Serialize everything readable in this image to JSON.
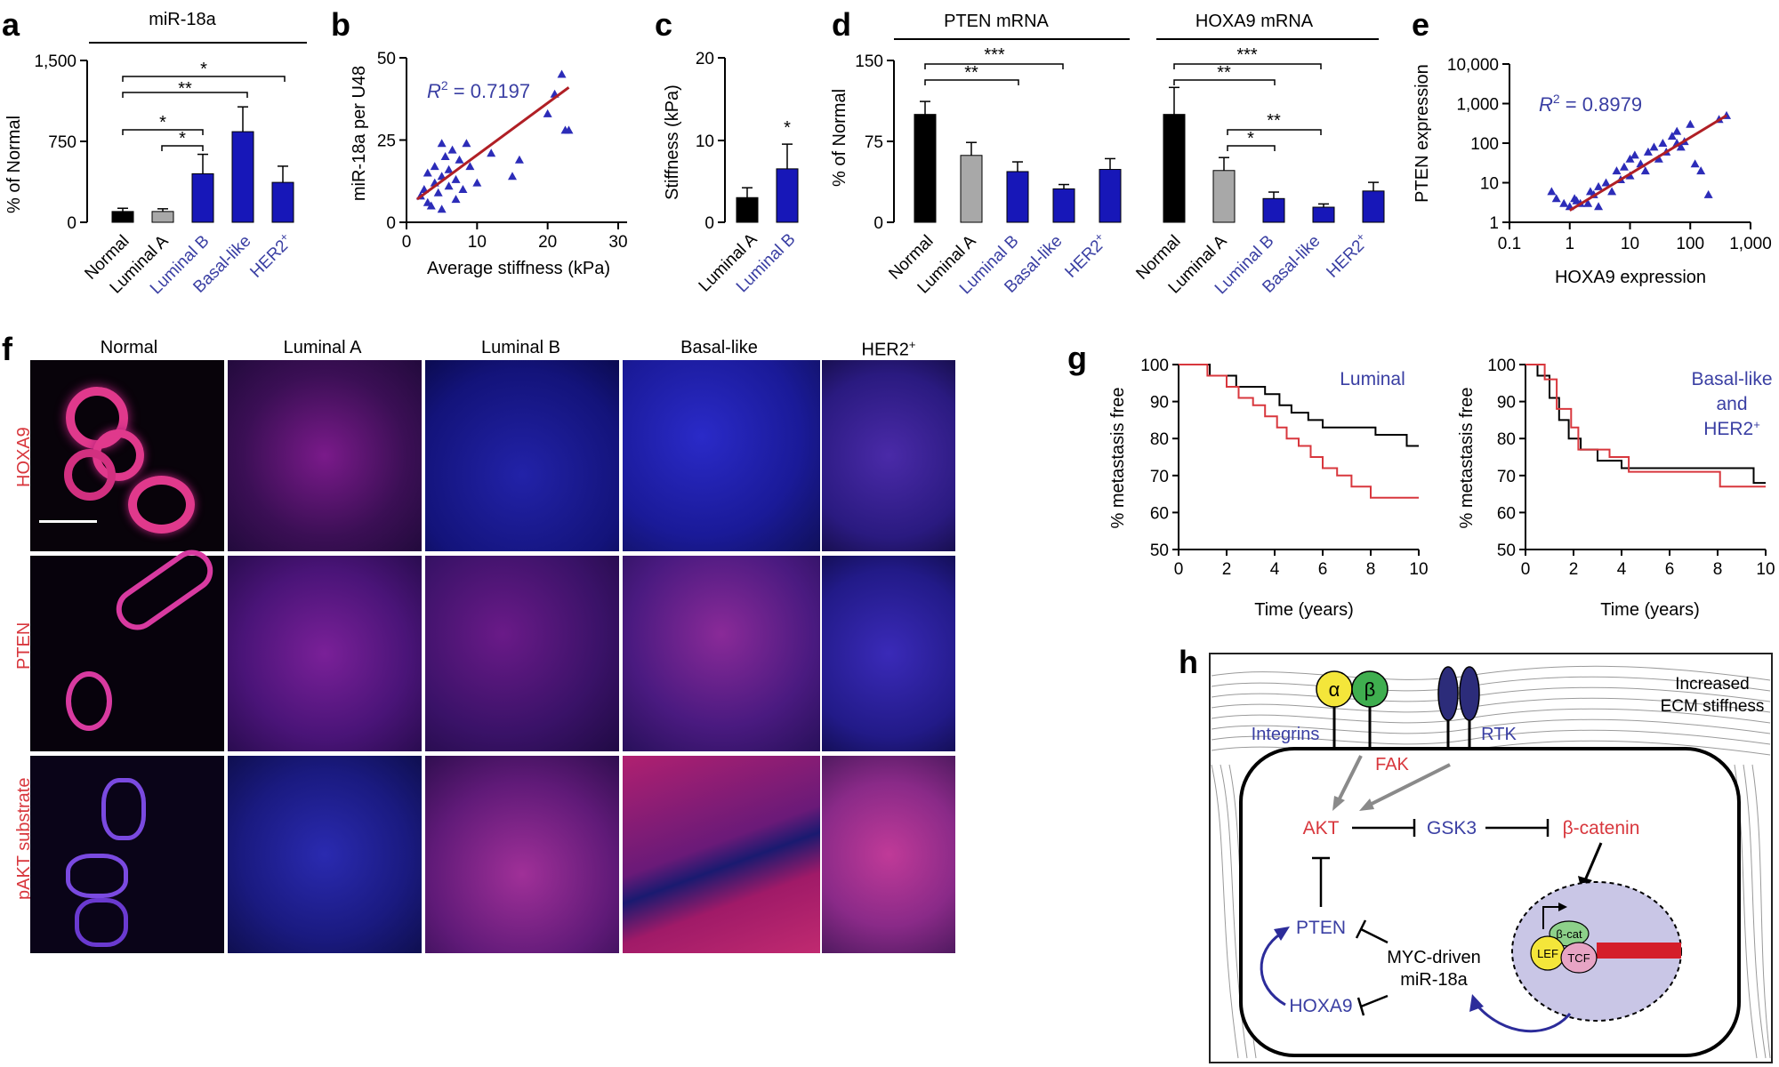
{
  "panels": {
    "a": {
      "letter": "a",
      "header": "miR-18a",
      "ylabel": "% of Normal",
      "yticks": [
        "0",
        "750",
        "1,500"
      ],
      "stars": [
        "*",
        "**",
        "*",
        "*"
      ]
    },
    "b": {
      "letter": "b",
      "ylabel": "miR-18a per U48",
      "xlabel": "Average stiffness (kPa)",
      "r2_prefix": "R",
      "r2_sup": "2",
      "r2_value": " = 0.7197",
      "yticks": [
        "0",
        "25",
        "50"
      ],
      "xticks": [
        "0",
        "10",
        "20",
        "30"
      ]
    },
    "c": {
      "letter": "c",
      "ylabel": "Stiffness (kPa)",
      "yticks": [
        "0",
        "10",
        "20"
      ],
      "star": "*"
    },
    "d": {
      "letter": "d",
      "header_left": "PTEN mRNA",
      "header_right": "HOXA9 mRNA",
      "ylabel": "% of Normal",
      "yticks": [
        "0",
        "75",
        "150"
      ],
      "stars_left": [
        "***",
        "**"
      ],
      "stars_right": [
        "***",
        "**",
        "**",
        "*"
      ]
    },
    "e": {
      "letter": "e",
      "ylabel": "PTEN expression",
      "xlabel": "HOXA9 expression",
      "r2_prefix": "R",
      "r2_sup": "2",
      "r2_value": " = 0.8979",
      "yticks": [
        "1",
        "10",
        "100",
        "1,000",
        "10,000"
      ],
      "xticks": [
        "0.1",
        "1",
        "10",
        "100",
        "1,000"
      ]
    },
    "f": {
      "letter": "f",
      "columns": [
        "Normal",
        "Luminal A",
        "Luminal B",
        "Basal-like",
        "HER2"
      ],
      "her2_sup": "+",
      "rows": [
        "HOXA9",
        "PTEN",
        "pAKT substrate"
      ]
    },
    "g": {
      "letter": "g",
      "ylabel": "% metastasis free",
      "xlabel": "Time (years)",
      "left_title": "Luminal",
      "right_title_1": "Basal-like",
      "right_title_2": "and",
      "right_title_3": "HER2",
      "right_title_sup": "+",
      "yticks": [
        "50",
        "60",
        "70",
        "80",
        "90",
        "100"
      ],
      "xticks": [
        "0",
        "2",
        "4",
        "6",
        "8",
        "10"
      ]
    },
    "h": {
      "letter": "h",
      "ecm": "Increased",
      "ecm2": "ECM stiffness",
      "alpha": "α",
      "beta": "β",
      "integrins": "Integrins",
      "fak": "FAK",
      "rtk": "RTK",
      "akt": "AKT",
      "gsk3": "GSK3",
      "bcatenin": "β-catenin",
      "pten": "PTEN",
      "hoxa9": "HOXA9",
      "myc1": "MYC-driven",
      "myc2": "miR-18a",
      "lef": "LEF",
      "tcf": "TCF",
      "bcat": "β-cat"
    }
  },
  "categories": {
    "normal": "Normal",
    "luma": "Luminal A",
    "lumb": "Luminal B",
    "basal": "Basal-like",
    "her2": "HER2",
    "her2_sup": "+"
  },
  "chart_data": [
    {
      "type": "bar",
      "panel": "a",
      "title": "miR-18a",
      "ylabel": "% of Normal",
      "categories": [
        "Normal",
        "Luminal A",
        "Luminal B",
        "Basal-like",
        "HER2+"
      ],
      "values": [
        100,
        100,
        450,
        840,
        370
      ],
      "errors": [
        30,
        25,
        180,
        230,
        150
      ],
      "ylim": [
        0,
        1500
      ]
    },
    {
      "type": "scatter",
      "panel": "b",
      "xlabel": "Average stiffness (kPa)",
      "ylabel": "miR-18a per U48",
      "xlim": [
        0,
        30
      ],
      "ylim": [
        0,
        50
      ],
      "r2": 0.7197,
      "fit": [
        [
          1.5,
          7
        ],
        [
          23,
          41
        ]
      ],
      "points": [
        [
          2,
          8
        ],
        [
          2.5,
          10
        ],
        [
          3,
          6
        ],
        [
          3.5,
          5
        ],
        [
          4,
          12
        ],
        [
          4,
          17
        ],
        [
          4.5,
          9
        ],
        [
          5,
          4
        ],
        [
          5,
          14
        ],
        [
          5.5,
          20
        ],
        [
          6,
          11
        ],
        [
          6,
          16
        ],
        [
          6.5,
          22
        ],
        [
          7,
          7
        ],
        [
          7,
          13
        ],
        [
          7.5,
          19
        ],
        [
          8,
          10
        ],
        [
          8.5,
          24
        ],
        [
          9,
          17
        ],
        [
          10,
          12
        ],
        [
          12,
          21
        ],
        [
          15,
          14
        ],
        [
          16,
          19
        ],
        [
          20,
          33
        ],
        [
          21,
          39
        ],
        [
          22,
          45
        ],
        [
          22.5,
          28
        ],
        [
          23,
          28
        ],
        [
          3,
          15
        ],
        [
          5,
          24
        ]
      ]
    },
    {
      "type": "bar",
      "panel": "c",
      "ylabel": "Stiffness (kPa)",
      "categories": [
        "Luminal A",
        "Luminal B"
      ],
      "values": [
        3,
        6.5
      ],
      "errors": [
        1.2,
        3
      ],
      "ylim": [
        0,
        20
      ]
    },
    {
      "type": "bar",
      "panel": "d-PTEN",
      "title": "PTEN mRNA",
      "ylabel": "% of Normal",
      "categories": [
        "Normal",
        "Luminal A",
        "Luminal B",
        "Basal-like",
        "HER2+"
      ],
      "values": [
        100,
        62,
        47,
        31,
        49
      ],
      "errors": [
        12,
        12,
        9,
        4,
        10
      ],
      "ylim": [
        0,
        150
      ]
    },
    {
      "type": "bar",
      "panel": "d-HOXA9",
      "title": "HOXA9 mRNA",
      "ylabel": "% of Normal",
      "categories": [
        "Normal",
        "Luminal A",
        "Luminal B",
        "Basal-like",
        "HER2+"
      ],
      "values": [
        100,
        48,
        22,
        14,
        29
      ],
      "errors": [
        25,
        12,
        6,
        3,
        8
      ],
      "ylim": [
        0,
        150
      ]
    },
    {
      "type": "scatter",
      "panel": "e",
      "xlabel": "HOXA9 expression",
      "ylabel": "PTEN expression",
      "xscale": "log",
      "yscale": "log",
      "xlim": [
        0.1,
        1000
      ],
      "ylim": [
        1,
        10000
      ],
      "r2": 0.8979,
      "fit": [
        [
          1,
          2
        ],
        [
          400,
          500
        ]
      ],
      "points": [
        [
          0.5,
          6
        ],
        [
          0.6,
          4
        ],
        [
          0.8,
          3
        ],
        [
          1,
          2.5
        ],
        [
          1.2,
          4
        ],
        [
          1.5,
          3
        ],
        [
          2,
          3
        ],
        [
          2.5,
          5
        ],
        [
          3,
          2.5
        ],
        [
          3,
          8
        ],
        [
          4,
          10
        ],
        [
          5,
          6
        ],
        [
          6,
          20
        ],
        [
          7,
          12
        ],
        [
          8,
          25
        ],
        [
          10,
          40
        ],
        [
          10,
          15
        ],
        [
          12,
          50
        ],
        [
          15,
          30
        ],
        [
          18,
          20
        ],
        [
          20,
          60
        ],
        [
          25,
          80
        ],
        [
          30,
          40
        ],
        [
          35,
          100
        ],
        [
          40,
          60
        ],
        [
          50,
          150
        ],
        [
          60,
          200
        ],
        [
          70,
          80
        ],
        [
          80,
          110
        ],
        [
          100,
          300
        ],
        [
          120,
          30
        ],
        [
          150,
          20
        ],
        [
          200,
          5
        ],
        [
          300,
          400
        ],
        [
          400,
          500
        ],
        [
          60,
          100
        ],
        [
          1.3,
          3.5
        ],
        [
          2.2,
          6
        ]
      ]
    },
    {
      "type": "line",
      "panel": "g-left",
      "title": "Luminal",
      "xlabel": "Time (years)",
      "ylabel": "% metastasis free",
      "xlim": [
        0,
        10
      ],
      "ylim": [
        50,
        100
      ],
      "series": [
        {
          "color": "#000000",
          "x": [
            0,
            1.3,
            1.3,
            2.4,
            2.4,
            3.6,
            3.6,
            4.2,
            4.2,
            4.7,
            4.7,
            5.4,
            5.4,
            6,
            6,
            6.8,
            6.8,
            8.2,
            8.2,
            9.5,
            9.5,
            10
          ],
          "y": [
            100,
            100,
            97,
            97,
            94,
            94,
            92,
            92,
            89,
            89,
            87,
            87,
            85,
            85,
            83,
            83,
            83,
            83,
            81,
            81,
            78,
            78
          ]
        },
        {
          "color": "#d8373d",
          "x": [
            0,
            1.2,
            1.2,
            2,
            2,
            2.5,
            2.5,
            3.1,
            3.1,
            3.6,
            3.6,
            4.1,
            4.1,
            4.5,
            4.5,
            5,
            5,
            5.5,
            5.5,
            6,
            6,
            6.6,
            6.6,
            7.2,
            7.2,
            8,
            8,
            10
          ],
          "y": [
            100,
            100,
            97,
            97,
            94,
            94,
            91,
            91,
            89,
            89,
            86,
            86,
            83,
            83,
            80,
            80,
            78,
            78,
            75,
            75,
            72,
            72,
            70,
            70,
            67,
            67,
            64,
            64
          ]
        }
      ]
    },
    {
      "type": "line",
      "panel": "g-right",
      "title": "Basal-like and HER2+",
      "xlabel": "Time (years)",
      "ylabel": "% metastasis free",
      "xlim": [
        0,
        10
      ],
      "ylim": [
        50,
        100
      ],
      "series": [
        {
          "color": "#000000",
          "x": [
            0,
            0.5,
            0.5,
            1,
            1,
            1.4,
            1.4,
            1.8,
            1.8,
            2.3,
            2.3,
            3,
            3,
            4,
            4,
            9.5,
            9.5,
            10
          ],
          "y": [
            100,
            100,
            97,
            97,
            91,
            91,
            85,
            85,
            80,
            80,
            77,
            77,
            74,
            74,
            72,
            72,
            68,
            68
          ]
        },
        {
          "color": "#d8373d",
          "x": [
            0,
            0.8,
            0.8,
            1.3,
            1.3,
            1.9,
            1.9,
            2.2,
            2.2,
            3.5,
            3.5,
            4.3,
            4.3,
            8.1,
            8.1,
            10
          ],
          "y": [
            100,
            100,
            96,
            96,
            88,
            88,
            83,
            83,
            77,
            77,
            75,
            75,
            71,
            71,
            67,
            67
          ]
        }
      ]
    }
  ]
}
